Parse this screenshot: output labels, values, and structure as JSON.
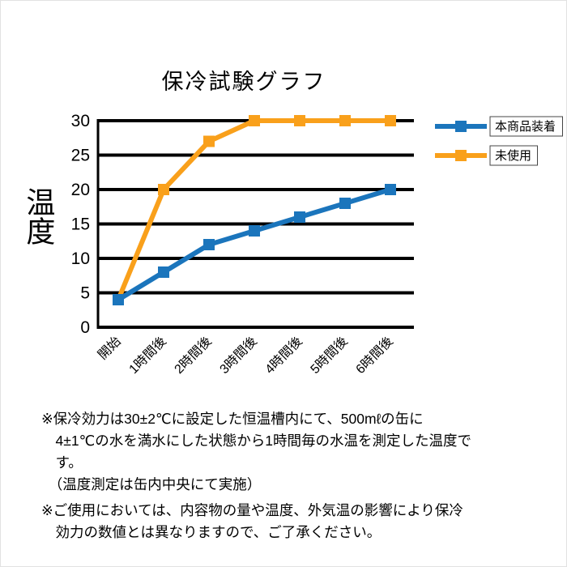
{
  "title": "保冷試験グラフ",
  "ylabel": "温度",
  "chart_data": {
    "type": "line",
    "title": "保冷試験グラフ",
    "xlabel": "",
    "ylabel": "温度",
    "categories": [
      "開始",
      "1時間後",
      "2時間後",
      "3時間後",
      "4時間後",
      "5時間後",
      "6時間後"
    ],
    "series": [
      {
        "name": "本商品装着",
        "color": "#1b75bc",
        "values": [
          4,
          8,
          12,
          14,
          16,
          18,
          20
        ]
      },
      {
        "name": "未使用",
        "color": "#f9a01b",
        "values": [
          4,
          20,
          27,
          30,
          30,
          30,
          30
        ]
      }
    ],
    "yticks": [
      0,
      5,
      10,
      15,
      20,
      25,
      30
    ],
    "ylim": [
      0,
      30
    ],
    "grid": true,
    "gridline_color": "#000000",
    "legend_position": "right"
  },
  "notes": [
    [
      "※保冷効力は30±2℃に設定した恒温槽内にて、500mℓの缶に",
      "　4±1℃の水を満水にした状態から1時間毎の水温を測定した温度で",
      "　す。",
      "　（温度測定は缶内中央にて実施）"
    ],
    [
      "※ご使用においては、内容物の量や温度、外気温の影響により保冷",
      "　効力の数値とは異なりますので、ご了承ください。"
    ]
  ]
}
